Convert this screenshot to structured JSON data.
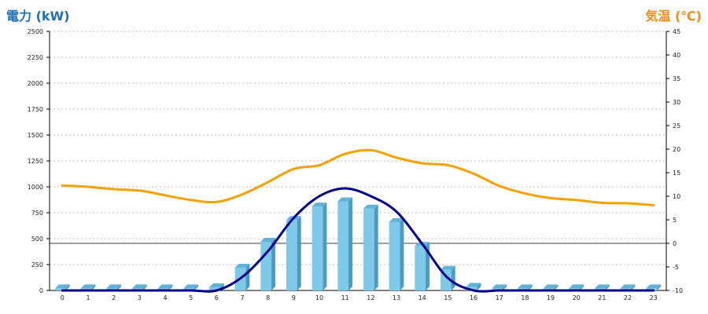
{
  "chart_data": {
    "type": "bar",
    "left_axis_title": "電力 (kW)",
    "right_axis_title": "気温 (℃)",
    "categories": [
      "0",
      "1",
      "2",
      "3",
      "4",
      "5",
      "6",
      "7",
      "8",
      "9",
      "10",
      "11",
      "12",
      "13",
      "14",
      "15",
      "16",
      "17",
      "18",
      "19",
      "20",
      "21",
      "22",
      "23"
    ],
    "y_left": {
      "min": 0,
      "max": 2500,
      "ticks": [
        "0",
        "250",
        "500",
        "750",
        "1000",
        "1250",
        "1500",
        "1750",
        "2000",
        "2250",
        "2500"
      ]
    },
    "y_right": {
      "min": -10,
      "max": 45,
      "ticks": [
        "-10",
        "-5",
        "0",
        "5",
        "10",
        "15",
        "20",
        "25",
        "30",
        "35",
        "40",
        "45"
      ]
    },
    "grid": true,
    "series": [
      {
        "kind": "bar",
        "axis": "left",
        "color": "#7ec8e8",
        "values": [
          20,
          20,
          20,
          20,
          20,
          20,
          30,
          220,
          470,
          680,
          810,
          860,
          790,
          660,
          430,
          200,
          35,
          20,
          20,
          20,
          20,
          20,
          20,
          20
        ]
      },
      {
        "kind": "line",
        "axis": "left",
        "color": "#00008b",
        "values": [
          0,
          0,
          0,
          0,
          0,
          0,
          0,
          130,
          380,
          700,
          910,
          985,
          910,
          760,
          450,
          120,
          0,
          0,
          0,
          0,
          0,
          0,
          0,
          0
        ]
      },
      {
        "kind": "line",
        "axis": "right",
        "color": "#f5a100",
        "values": [
          12.3,
          12.0,
          11.5,
          11.2,
          10.2,
          9.2,
          8.8,
          10.4,
          13.0,
          15.8,
          16.6,
          19.0,
          19.8,
          18.2,
          17.0,
          16.6,
          14.8,
          12.2,
          10.6,
          9.6,
          9.2,
          8.6,
          8.5,
          8.1
        ]
      }
    ],
    "zero_line_temperature": 0
  }
}
